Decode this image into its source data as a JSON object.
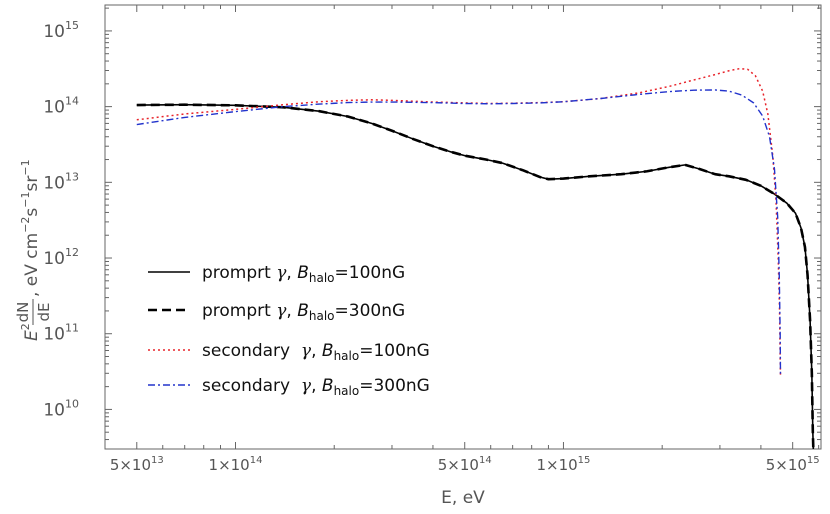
{
  "chart_data": {
    "type": "line",
    "xscale": "log",
    "yscale": "log",
    "xlim": [
      40000000000000.0,
      6100000000000000.0
    ],
    "ylim": [
      3000000000.0,
      2200000000000000.0
    ],
    "xlabel": "E, eV",
    "ylabel": {
      "prefix": "E",
      "prefix_sup": "2",
      "frac_num": "dN",
      "frac_den": "dE",
      "units": ", eV cm",
      "u1": "−2",
      "s": "s",
      "u2": "−1",
      "sr": "sr",
      "u3": "−1"
    },
    "x_ticks": [
      {
        "value": 50000000000000.0,
        "mant": "5×10",
        "exp": "13"
      },
      {
        "value": 100000000000000.0,
        "mant": "1×10",
        "exp": "14"
      },
      {
        "value": 500000000000000.0,
        "mant": "5×10",
        "exp": "14"
      },
      {
        "value": 1000000000000000.0,
        "mant": "1×10",
        "exp": "15"
      },
      {
        "value": 5000000000000000.0,
        "mant": "5×10",
        "exp": "15"
      }
    ],
    "y_ticks": [
      {
        "value": 10000000000.0,
        "base": "10",
        "exp": "10"
      },
      {
        "value": 100000000000.0,
        "base": "10",
        "exp": "11"
      },
      {
        "value": 1000000000000.0,
        "base": "10",
        "exp": "12"
      },
      {
        "value": 10000000000000.0,
        "base": "10",
        "exp": "13"
      },
      {
        "value": 100000000000000.0,
        "base": "10",
        "exp": "14"
      },
      {
        "value": 1000000000000000.0,
        "base": "10",
        "exp": "15"
      }
    ],
    "legend": {
      "placement": "lower-left",
      "entries": [
        {
          "pre": "promprt ",
          "greek": "γ",
          "mid": ", ",
          "B": "B",
          "sub": "halo",
          "post": "=100nG"
        },
        {
          "pre": "promprt ",
          "greek": "γ",
          "mid": ", ",
          "B": "B",
          "sub": "halo",
          "post": "=300nG"
        },
        {
          "pre": "secondary  ",
          "greek": "γ",
          "mid": ", ",
          "B": "B",
          "sub": "halo",
          "post": "=100nG"
        },
        {
          "pre": "secondary  ",
          "greek": "γ",
          "mid": ", ",
          "B": "B",
          "sub": "halo",
          "post": "=300nG"
        }
      ]
    },
    "series": [
      {
        "name_index": 0,
        "color": "#000000",
        "style": "solid",
        "points": [
          [
            50000000000000.0,
            105000000000000.0
          ],
          [
            70000000000000.0,
            106000000000000.0
          ],
          [
            100000000000000.0,
            104000000000000.0
          ],
          [
            140000000000000.0,
            98000000000000.0
          ],
          [
            180000000000000.0,
            87000000000000.0
          ],
          [
            220000000000000.0,
            74000000000000.0
          ],
          [
            260000000000000.0,
            60000000000000.0
          ],
          [
            300000000000000.0,
            48000000000000.0
          ],
          [
            350000000000000.0,
            37000000000000.0
          ],
          [
            400000000000000.0,
            30000000000000.0
          ],
          [
            450000000000000.0,
            25500000000000.0
          ],
          [
            500000000000000.0,
            22500000000000.0
          ],
          [
            580000000000000.0,
            20000000000000.0
          ],
          [
            650000000000000.0,
            18000000000000.0
          ],
          [
            750000000000000.0,
            14500000000000.0
          ],
          [
            850000000000000.0,
            11700000000000.0
          ],
          [
            900000000000000.0,
            11000000000000.0
          ],
          [
            1000000000000000.0,
            11200000000000.0
          ],
          [
            1200000000000000.0,
            12000000000000.0
          ],
          [
            1500000000000000.0,
            12800000000000.0
          ],
          [
            1800000000000000.0,
            14000000000000.0
          ],
          [
            2100000000000000.0,
            15800000000000.0
          ],
          [
            2350000000000000.0,
            17000000000000.0
          ],
          [
            2600000000000000.0,
            15000000000000.0
          ],
          [
            2900000000000000.0,
            12800000000000.0
          ],
          [
            3200000000000000.0,
            12000000000000.0
          ],
          [
            3600000000000000.0,
            10800000000000.0
          ],
          [
            4000000000000000.0,
            9000000000000.0
          ],
          [
            4400000000000000.0,
            7000000000000.0
          ],
          [
            4800000000000000.0,
            5300000000000.0
          ],
          [
            5100000000000000.0,
            3900000000000.0
          ],
          [
            5300000000000000.0,
            2500000000000.0
          ],
          [
            5450000000000000.0,
            1400000000000.0
          ],
          [
            5550000000000000.0,
            600000000000.0
          ],
          [
            5650000000000000.0,
            150000000000.0
          ],
          [
            5720000000000000.0,
            30000000000.0
          ],
          [
            5760000000000000.0,
            5000000000.0
          ],
          [
            5780000000000000.0,
            3000000000.0
          ]
        ]
      },
      {
        "name_index": 1,
        "color": "#000000",
        "style": "dashed",
        "points": [
          [
            50000000000000.0,
            105000000000000.0
          ],
          [
            70000000000000.0,
            106000000000000.0
          ],
          [
            100000000000000.0,
            104000000000000.0
          ],
          [
            140000000000000.0,
            98000000000000.0
          ],
          [
            180000000000000.0,
            87000000000000.0
          ],
          [
            220000000000000.0,
            74000000000000.0
          ],
          [
            260000000000000.0,
            60000000000000.0
          ],
          [
            300000000000000.0,
            48000000000000.0
          ],
          [
            350000000000000.0,
            37000000000000.0
          ],
          [
            400000000000000.0,
            30000000000000.0
          ],
          [
            450000000000000.0,
            25500000000000.0
          ],
          [
            500000000000000.0,
            22500000000000.0
          ],
          [
            580000000000000.0,
            20000000000000.0
          ],
          [
            650000000000000.0,
            18000000000000.0
          ],
          [
            750000000000000.0,
            14500000000000.0
          ],
          [
            850000000000000.0,
            11700000000000.0
          ],
          [
            900000000000000.0,
            11000000000000.0
          ],
          [
            1000000000000000.0,
            11200000000000.0
          ],
          [
            1200000000000000.0,
            12000000000000.0
          ],
          [
            1500000000000000.0,
            12800000000000.0
          ],
          [
            1800000000000000.0,
            14000000000000.0
          ],
          [
            2100000000000000.0,
            15800000000000.0
          ],
          [
            2350000000000000.0,
            17000000000000.0
          ],
          [
            2600000000000000.0,
            15000000000000.0
          ],
          [
            2900000000000000.0,
            12800000000000.0
          ],
          [
            3200000000000000.0,
            12000000000000.0
          ],
          [
            3600000000000000.0,
            10800000000000.0
          ],
          [
            4000000000000000.0,
            9000000000000.0
          ],
          [
            4400000000000000.0,
            7000000000000.0
          ],
          [
            4800000000000000.0,
            5300000000000.0
          ],
          [
            5100000000000000.0,
            3900000000000.0
          ],
          [
            5300000000000000.0,
            2500000000000.0
          ],
          [
            5450000000000000.0,
            1400000000000.0
          ],
          [
            5550000000000000.0,
            600000000000.0
          ],
          [
            5650000000000000.0,
            150000000000.0
          ],
          [
            5720000000000000.0,
            30000000000.0
          ],
          [
            5760000000000000.0,
            5000000000.0
          ],
          [
            5780000000000000.0,
            3000000000.0
          ]
        ]
      },
      {
        "name_index": 2,
        "color": "#e8232a",
        "style": "dotted",
        "points": [
          [
            50000000000000.0,
            67000000000000.0
          ],
          [
            70000000000000.0,
            80000000000000.0
          ],
          [
            100000000000000.0,
            92000000000000.0
          ],
          [
            140000000000000.0,
            106000000000000.0
          ],
          [
            180000000000000.0,
            116000000000000.0
          ],
          [
            220000000000000.0,
            121000000000000.0
          ],
          [
            260000000000000.0,
            123000000000000.0
          ],
          [
            300000000000000.0,
            121000000000000.0
          ],
          [
            400000000000000.0,
            115000000000000.0
          ],
          [
            500000000000000.0,
            112000000000000.0
          ],
          [
            600000000000000.0,
            110000000000000.0
          ],
          [
            700000000000000.0,
            111000000000000.0
          ],
          [
            850000000000000.0,
            113000000000000.0
          ],
          [
            1000000000000000.0,
            116000000000000.0
          ],
          [
            1300000000000000.0,
            128000000000000.0
          ],
          [
            1700000000000000.0,
            152000000000000.0
          ],
          [
            2100000000000000.0,
            185000000000000.0
          ],
          [
            2500000000000000.0,
            225000000000000.0
          ],
          [
            2900000000000000.0,
            265000000000000.0
          ],
          [
            3200000000000000.0,
            298000000000000.0
          ],
          [
            3450000000000000.0,
            318000000000000.0
          ],
          [
            3650000000000000.0,
            310000000000000.0
          ],
          [
            3850000000000000.0,
            255000000000000.0
          ],
          [
            4050000000000000.0,
            160000000000000.0
          ],
          [
            4200000000000000.0,
            80000000000000.0
          ],
          [
            4350000000000000.0,
            22000000000000.0
          ],
          [
            4450000000000000.0,
            5500000000000.0
          ],
          [
            4520000000000000.0,
            900000000000.0
          ],
          [
            4560000000000000.0,
            200000000000.0
          ],
          [
            4580000000000000.0,
            45000000000.0
          ],
          [
            4590000000000000.0,
            28000000000.0
          ]
        ]
      },
      {
        "name_index": 3,
        "color": "#2233cc",
        "style": "dashdot",
        "points": [
          [
            50000000000000.0,
            58000000000000.0
          ],
          [
            70000000000000.0,
            72000000000000.0
          ],
          [
            100000000000000.0,
            86000000000000.0
          ],
          [
            140000000000000.0,
            100000000000000.0
          ],
          [
            180000000000000.0,
            108000000000000.0
          ],
          [
            220000000000000.0,
            113000000000000.0
          ],
          [
            260000000000000.0,
            115000000000000.0
          ],
          [
            300000000000000.0,
            115000000000000.0
          ],
          [
            400000000000000.0,
            113000000000000.0
          ],
          [
            500000000000000.0,
            110000000000000.0
          ],
          [
            600000000000000.0,
            109000000000000.0
          ],
          [
            700000000000000.0,
            110000000000000.0
          ],
          [
            850000000000000.0,
            112000000000000.0
          ],
          [
            1000000000000000.0,
            116000000000000.0
          ],
          [
            1300000000000000.0,
            128000000000000.0
          ],
          [
            1700000000000000.0,
            145000000000000.0
          ],
          [
            2100000000000000.0,
            158000000000000.0
          ],
          [
            2500000000000000.0,
            165000000000000.0
          ],
          [
            2900000000000000.0,
            166000000000000.0
          ],
          [
            3200000000000000.0,
            160000000000000.0
          ],
          [
            3500000000000000.0,
            142000000000000.0
          ],
          [
            3800000000000000.0,
            112000000000000.0
          ],
          [
            4050000000000000.0,
            75000000000000.0
          ],
          [
            4250000000000000.0,
            40000000000000.0
          ],
          [
            4400000000000000.0,
            15000000000000.0
          ],
          [
            4500000000000000.0,
            3500000000000.0
          ],
          [
            4550000000000000.0,
            600000000000.0
          ],
          [
            4580000000000000.0,
            100000000000.0
          ],
          [
            4590000000000000.0,
            28000000000.0
          ]
        ]
      }
    ]
  }
}
